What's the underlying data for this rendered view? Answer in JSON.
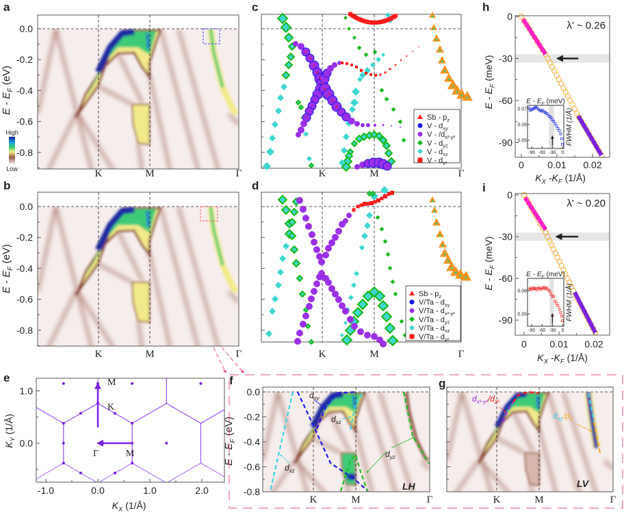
{
  "panel_letters": {
    "a": "a",
    "b": "b",
    "c": "c",
    "d": "d",
    "e": "e",
    "f": "f",
    "g": "g",
    "h": "h",
    "i": "i"
  },
  "chart_data": [
    {
      "panel": "a",
      "type": "heatmap",
      "ylabel": "E - E",
      "ylabel_sub": "F",
      "ylabel_unit": " (eV)",
      "ylim": [
        -0.9,
        0.08
      ],
      "yticks": [
        "0.0",
        "-0.2",
        "-0.4",
        "-0.6",
        "-0.8"
      ],
      "xticks": [
        "K",
        "M",
        "Γ"
      ],
      "colorbar": {
        "high": "High",
        "low": "Low",
        "colors": [
          "#1c1c9c",
          "#1f9fe0",
          "#36cc66",
          "#f2ee86",
          "#9a5a48",
          "#f7f0ef"
        ]
      },
      "highlight_box_color": "#4040ff"
    },
    {
      "panel": "b",
      "type": "heatmap",
      "ylabel": "E - E",
      "ylabel_sub": "F",
      "ylabel_unit": " (eV)",
      "ylim": [
        -0.9,
        0.08
      ],
      "yticks": [
        "0.0",
        "-0.2",
        "-0.4",
        "-0.6",
        "-0.8"
      ],
      "xticks": [
        "K",
        "M",
        "Γ"
      ],
      "highlight_box_color": "#ff5a5a"
    },
    {
      "panel": "c",
      "type": "scatter",
      "xticks": [
        "K",
        "M",
        "Γ"
      ],
      "legend_position": "bottom-right",
      "legend": [
        {
          "label": "Sb - p",
          "sub": "z",
          "color": "#f5a623",
          "marker": "triangle",
          "marker_color": "#ff1a1a"
        },
        {
          "label": "V - d",
          "sub": "xy",
          "color": "#1a1ae6",
          "marker": "circle",
          "marker_color": "#1a1ae6"
        },
        {
          "label": "V - /d",
          "sub": "x²-y²",
          "color": "#9b30e8",
          "marker": "circle",
          "marker_color": "#9b30e8"
        },
        {
          "label": "V - d",
          "sub": "yz",
          "color": "#18b818",
          "marker": "diamond",
          "marker_color": "#18b818"
        },
        {
          "label": "V - d",
          "sub": "xz",
          "color": "#3fd6d0",
          "marker": "diamond",
          "marker_color": "#3fd6d0"
        },
        {
          "label": "V - d",
          "sub": "z²",
          "color": "#ff1a1a",
          "marker": "square",
          "marker_color": "#ff1a1a"
        }
      ]
    },
    {
      "panel": "d",
      "type": "scatter",
      "xticks": [
        "K",
        "M",
        "Γ"
      ],
      "legend_position": "bottom-right",
      "legend": [
        {
          "label": "Sb - p",
          "sub": "z",
          "color": "#f5a623",
          "marker": "triangle",
          "marker_color": "#ff1a1a"
        },
        {
          "label": "V/Ta - d",
          "sub": "xy",
          "color": "#1a1ae6",
          "marker": "circle",
          "marker_color": "#1a1ae6"
        },
        {
          "label": "V/Ta - d",
          "sub": "x²-y²",
          "color": "#9b30e8",
          "marker": "circle",
          "marker_color": "#9b30e8"
        },
        {
          "label": "V/Ta - d",
          "sub": "yz",
          "color": "#18b818",
          "marker": "diamond",
          "marker_color": "#18b818"
        },
        {
          "label": "V/Ta - d",
          "sub": "xz",
          "color": "#3fd6d0",
          "marker": "diamond",
          "marker_color": "#3fd6d0"
        },
        {
          "label": "V/Ta - d",
          "sub": "z²",
          "color": "#ff1a1a",
          "marker": "square",
          "marker_color": "#ff1a1a"
        }
      ]
    },
    {
      "panel": "e",
      "type": "scatter",
      "xlabel": "K",
      "xlabel_sub": "X",
      "xlabel_unit": " (1/Å)",
      "ylabel": "K",
      "ylabel_sub": "Y",
      "ylabel_unit": " (1/Å)",
      "xticks": [
        "-1.0",
        "0.0",
        "1.0",
        "2.0"
      ],
      "yticks": [
        "1.0",
        "0.0"
      ],
      "xlim": [
        -1.2,
        2.4
      ],
      "ylim": [
        -0.74,
        1.24
      ],
      "lattice": {
        "gamma_K": 0.76,
        "gamma_M": 0.66
      },
      "color": "#8a3cf0",
      "point_labels": [
        {
          "text": "M",
          "x": 0,
          "y": 1.14
        },
        {
          "text": "K",
          "x": 0,
          "y": 0.76
        },
        {
          "text": "Γ",
          "x": 0,
          "y": 0
        },
        {
          "text": "M",
          "x": 0.66,
          "y": 0
        }
      ],
      "arrows": [
        {
          "from": [
            0,
            0.3
          ],
          "to": [
            0,
            1.14
          ]
        },
        {
          "from": [
            0.66,
            0
          ],
          "to": [
            0,
            0
          ]
        }
      ]
    },
    {
      "panel": "f",
      "type": "heatmap",
      "ylabel": "E - E",
      "ylabel_sub": "F",
      "ylabel_unit": " (eV)",
      "ylim": [
        -0.8,
        0.03
      ],
      "yticks": [
        "0.0",
        "-0.2",
        "-0.4",
        "-0.6",
        "-0.8"
      ],
      "xticks": [
        "K",
        "M",
        "Γ"
      ],
      "polarization": "LH",
      "polarization_color": "#7a2a9a",
      "annotations": [
        {
          "text": "d",
          "sub": "xy",
          "color": "#1a1ae6"
        },
        {
          "text": "d",
          "sub": "xz",
          "color": "#3fd0e8"
        },
        {
          "text": "d",
          "sub": "xz",
          "color": "#3fd0e8"
        },
        {
          "text": "d",
          "sub": "yz",
          "color": "#22bb22"
        }
      ]
    },
    {
      "panel": "g",
      "type": "heatmap",
      "ylim": [
        -0.8,
        0.03
      ],
      "xticks": [
        "K",
        "M",
        "Γ"
      ],
      "polarization": "LV",
      "polarization_color": "#7a2a9a",
      "annotations": [
        {
          "text": "d",
          "sub": "x²-y²",
          "color": "#9b30e8"
        },
        {
          "text": "/d",
          "sub": "z²",
          "color": "#ff1a1a"
        },
        {
          "text": "d",
          "sub": "xz",
          "color": "#3fd0e8"
        },
        {
          "text": "/p",
          "sub": "z",
          "color": "#f5a623"
        }
      ]
    },
    {
      "panel": "h",
      "type": "scatter",
      "lambda": "λ' ~ 0.26",
      "lambda_color": "#2020ff",
      "xlabel": "K",
      "xlabel_sub": "X",
      "xlabel_mid": " -K",
      "xlabel_sub2": "F",
      "xlabel_unit": " (1/Å)",
      "ylabel": "E - E",
      "ylabel_sub": "F",
      "ylabel_unit": " (meV)",
      "xticks": [
        "0",
        "0.01",
        "0.02"
      ],
      "yticks": [
        "0",
        "-30",
        "-60",
        "-90"
      ],
      "xlim": [
        -0.0017,
        0.0248
      ],
      "ylim": [
        -100.5,
        0.5
      ],
      "kink_band": [
        -33,
        -27
      ],
      "kink_arrow_k": [
        0.016,
        0.0102
      ],
      "points": [
        [
          0,
          0
        ],
        [
          0.00075,
          -3
        ],
        [
          0.0015,
          -6
        ],
        [
          0.00225,
          -9
        ],
        [
          0.003,
          -12
        ],
        [
          0.00375,
          -15
        ],
        [
          0.0045,
          -18
        ],
        [
          0.00525,
          -21
        ],
        [
          0.006,
          -24
        ],
        [
          0.0068,
          -27
        ],
        [
          0.00743,
          -30
        ],
        [
          0.00805,
          -33
        ],
        [
          0.00868,
          -36
        ],
        [
          0.00931,
          -39
        ],
        [
          0.00994,
          -42
        ],
        [
          0.01056,
          -45
        ],
        [
          0.01119,
          -48
        ],
        [
          0.01182,
          -51
        ],
        [
          0.01245,
          -54
        ],
        [
          0.01307,
          -57
        ],
        [
          0.0137,
          -60
        ],
        [
          0.01433,
          -63
        ],
        [
          0.01496,
          -66
        ],
        [
          0.01558,
          -69
        ],
        [
          0.01623,
          -72
        ],
        [
          0.01694,
          -75
        ],
        [
          0.01764,
          -78
        ],
        [
          0.01834,
          -81
        ],
        [
          0.01904,
          -84
        ],
        [
          0.01974,
          -87
        ],
        [
          0.02045,
          -90
        ],
        [
          0.02115,
          -93
        ],
        [
          0.02185,
          -96
        ],
        [
          0.02255,
          -99
        ]
      ],
      "fit_low": {
        "from": [
          0.0005,
          -2
        ],
        "to": [
          0.0068,
          -27
        ],
        "color": "#ff22c4"
      },
      "fit_high": {
        "from": [
          0.016,
          -71
        ],
        "to": [
          0.0225,
          -99
        ],
        "color": "#7a22e0"
      },
      "inset": {
        "xlabel": "E - E",
        "xlabel_sub": "F",
        "xlabel_unit": " (meV)",
        "ylabel": "FWHM (1/Å)",
        "xticks": [
          "-90",
          "-60",
          "-30",
          "0"
        ],
        "yticks": [
          "0.07",
          "0.06",
          "0.05"
        ],
        "xlim": [
          -102,
          3
        ],
        "ylim": [
          0.0448,
          0.0722
        ],
        "band": [
          -40,
          -25
        ],
        "color": "#2838e0",
        "points": [
          [
            -98,
            0.0705
          ],
          [
            -94,
            0.069
          ],
          [
            -90,
            0.0695
          ],
          [
            -86,
            0.07
          ],
          [
            -82,
            0.0705
          ],
          [
            -78,
            0.071
          ],
          [
            -74,
            0.0705
          ],
          [
            -70,
            0.0695
          ],
          [
            -66,
            0.069
          ],
          [
            -62,
            0.0685
          ],
          [
            -58,
            0.069
          ],
          [
            -54,
            0.068
          ],
          [
            -50,
            0.0675
          ],
          [
            -46,
            0.067
          ],
          [
            -42,
            0.066
          ],
          [
            -38,
            0.065
          ],
          [
            -34,
            0.0645
          ],
          [
            -30,
            0.063
          ],
          [
            -26,
            0.062
          ],
          [
            -22,
            0.0605
          ],
          [
            -18,
            0.059
          ],
          [
            -14,
            0.0575
          ],
          [
            -10,
            0.056
          ],
          [
            -6,
            0.054
          ],
          [
            -3,
            0.051
          ],
          [
            -1,
            0.0475
          ]
        ]
      }
    },
    {
      "panel": "i",
      "type": "scatter",
      "lambda": "λ' ~ 0.20",
      "lambda_color": "#ff2020",
      "xlabel": "K",
      "xlabel_sub": "X",
      "xlabel_mid": " -K",
      "xlabel_sub2": "F",
      "xlabel_unit": " (1/Å)",
      "ylabel": "E - E",
      "ylabel_sub": "F",
      "ylabel_unit": " (meV)",
      "xticks": [
        "0",
        "0.01",
        "0.02"
      ],
      "yticks": [
        "0",
        "-30",
        "-60",
        "-90"
      ],
      "xlim": [
        -0.00255,
        0.0245
      ],
      "ylim": [
        -100.8,
        1
      ],
      "kink_band": [
        -33,
        -27
      ],
      "kink_arrow_k": [
        0.0155,
        0.0093
      ],
      "points": [
        [
          0,
          0
        ],
        [
          0.00068,
          -3
        ],
        [
          0.00136,
          -6
        ],
        [
          0.00204,
          -9
        ],
        [
          0.00272,
          -12
        ],
        [
          0.00339,
          -15
        ],
        [
          0.00407,
          -18
        ],
        [
          0.00475,
          -21
        ],
        [
          0.00543,
          -24
        ],
        [
          0.00615,
          -27
        ],
        [
          0.00672,
          -30
        ],
        [
          0.00729,
          -33
        ],
        [
          0.00786,
          -36
        ],
        [
          0.00843,
          -39
        ],
        [
          0.009,
          -42
        ],
        [
          0.00956,
          -45
        ],
        [
          0.01013,
          -48
        ],
        [
          0.0107,
          -51
        ],
        [
          0.01127,
          -54
        ],
        [
          0.01183,
          -57
        ],
        [
          0.0124,
          -60
        ],
        [
          0.01297,
          -63
        ],
        [
          0.01354,
          -66
        ],
        [
          0.0141,
          -69
        ],
        [
          0.01469,
          -72
        ],
        [
          0.01533,
          -75
        ],
        [
          0.01596,
          -78
        ],
        [
          0.0166,
          -81
        ],
        [
          0.01723,
          -84
        ],
        [
          0.01786,
          -87
        ],
        [
          0.01851,
          -90
        ],
        [
          0.01914,
          -93
        ],
        [
          0.01977,
          -96
        ],
        [
          0.02041,
          -99
        ]
      ],
      "fit_low": {
        "from": [
          0.0003,
          -2
        ],
        "to": [
          0.0062,
          -25
        ],
        "color": "#ff22c4"
      },
      "fit_high": {
        "from": [
          0.0145,
          -70
        ],
        "to": [
          0.0204,
          -99
        ],
        "color": "#7a22e0"
      },
      "inset": {
        "xlabel": "E - E",
        "xlabel_sub": "F",
        "xlabel_unit": " (meV)",
        "ylabel": "FWHM (1/Å)",
        "xticks": [
          "-90",
          "-60",
          "-30",
          "0"
        ],
        "yticks": [
          "0.06",
          "0.05"
        ],
        "xlim": [
          -102,
          3
        ],
        "ylim": [
          0.0447,
          0.0653
        ],
        "band": [
          -38,
          -26
        ],
        "color": "#ee2a2a",
        "points": [
          [
            -98,
            0.0605
          ],
          [
            -94,
            0.061
          ],
          [
            -90,
            0.0605
          ],
          [
            -86,
            0.0612
          ],
          [
            -82,
            0.0608
          ],
          [
            -78,
            0.061
          ],
          [
            -74,
            0.0604
          ],
          [
            -70,
            0.0612
          ],
          [
            -66,
            0.061
          ],
          [
            -62,
            0.0606
          ],
          [
            -58,
            0.0612
          ],
          [
            -54,
            0.0614
          ],
          [
            -50,
            0.0608
          ],
          [
            -46,
            0.0612
          ],
          [
            -42,
            0.0604
          ],
          [
            -38,
            0.0598
          ],
          [
            -34,
            0.0585
          ],
          [
            -30,
            0.0575
          ],
          [
            -26,
            0.0575
          ],
          [
            -22,
            0.0555
          ],
          [
            -18,
            0.0545
          ],
          [
            -14,
            0.0535
          ],
          [
            -10,
            0.052
          ],
          [
            -6,
            0.0505
          ],
          [
            -3,
            0.049
          ],
          [
            -1,
            0.047
          ]
        ]
      }
    }
  ]
}
